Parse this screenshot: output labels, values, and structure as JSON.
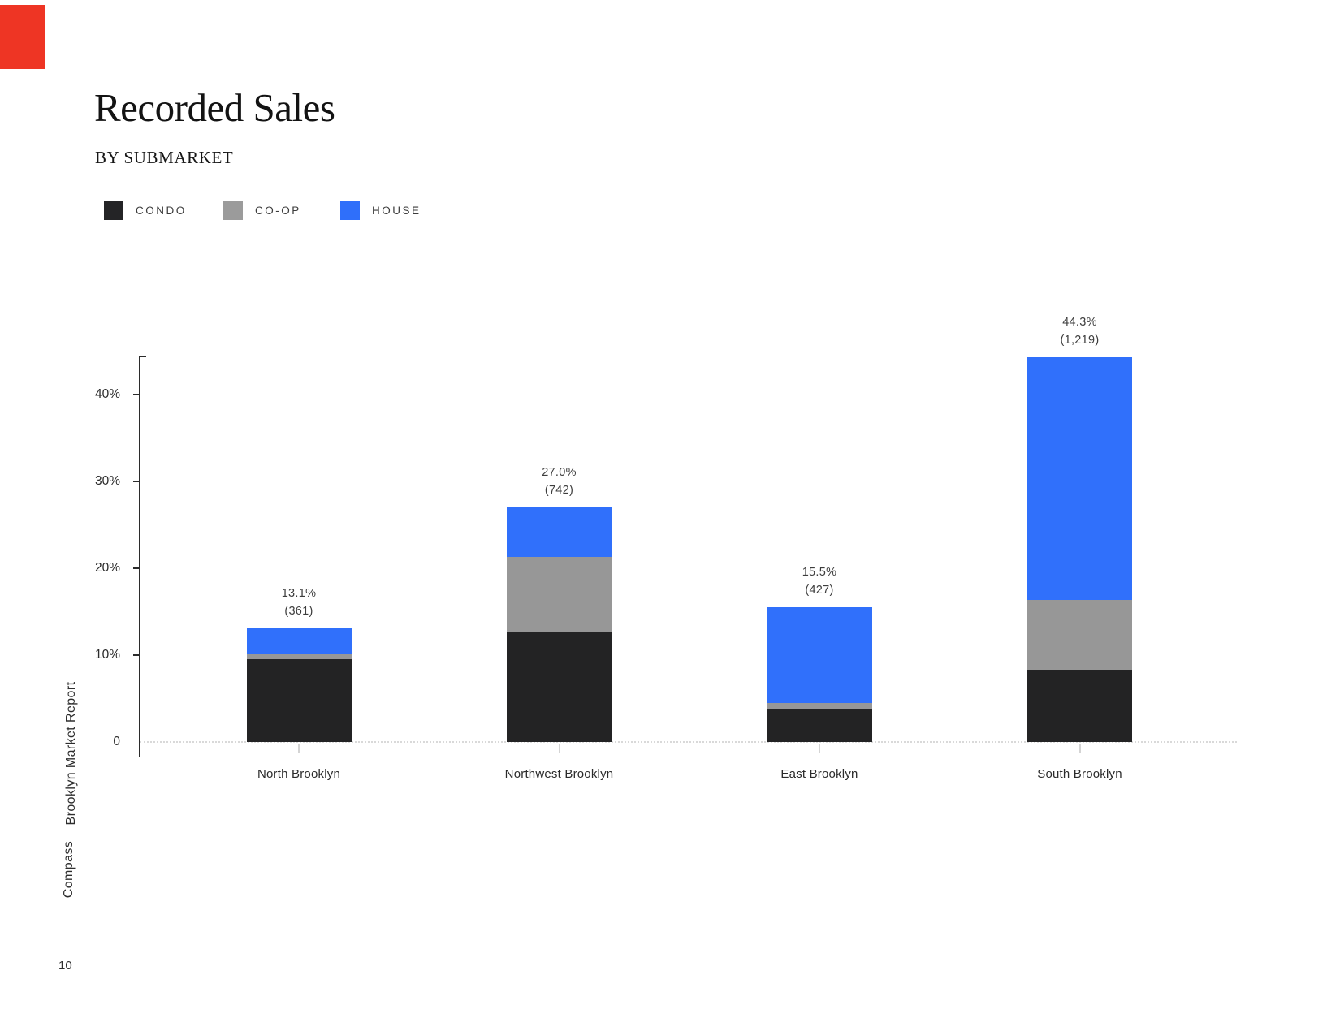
{
  "page": {
    "title": "Recorded Sales",
    "subtitle": "BY SUBMARKET",
    "accent_color": "#ee3524",
    "page_number": "10"
  },
  "sidebar": {
    "report_name": "Brooklyn Market Report",
    "brand": "Compass"
  },
  "legend": [
    {
      "label": "CONDO",
      "color": "#242426"
    },
    {
      "label": "CO-OP",
      "color": "#9b9b9b"
    },
    {
      "label": "HOUSE",
      "color": "#2f6ffa"
    }
  ],
  "chart_data": {
    "type": "bar",
    "stacked": true,
    "title": "Recorded Sales",
    "subtitle": "BY SUBMARKET",
    "xlabel": "",
    "ylabel": "",
    "ylim": [
      0,
      44.6
    ],
    "grid": false,
    "legend_position": "top-left",
    "categories": [
      "North Brooklyn",
      "Northwest Brooklyn",
      "East Brooklyn",
      "South Brooklyn"
    ],
    "series": [
      {
        "name": "CONDO",
        "color": "#232324",
        "values": [
          9.5,
          12.7,
          3.7,
          8.3
        ]
      },
      {
        "name": "CO-OP",
        "color": "#979797",
        "values": [
          0.6,
          8.6,
          0.8,
          8.1
        ]
      },
      {
        "name": "HOUSE",
        "color": "#3070fb",
        "values": [
          3.0,
          5.7,
          11.0,
          27.9
        ]
      }
    ],
    "totals": [
      {
        "percent_label": "13.1%",
        "count_label": "(361)",
        "total_percent": 13.1,
        "count": 361
      },
      {
        "percent_label": "27.0%",
        "count_label": "(742)",
        "total_percent": 27.0,
        "count": 742
      },
      {
        "percent_label": "15.5%",
        "count_label": "(427)",
        "total_percent": 15.5,
        "count": 427
      },
      {
        "percent_label": "44.3%",
        "count_label": "(1,219)",
        "total_percent": 44.3,
        "count": 1219
      }
    ],
    "y_ticks": [
      {
        "label": "40%",
        "value": 40
      },
      {
        "label": "30%",
        "value": 30
      },
      {
        "label": "20%",
        "value": 20
      },
      {
        "label": "10%",
        "value": 10
      },
      {
        "label": "0",
        "value": 0
      }
    ]
  }
}
